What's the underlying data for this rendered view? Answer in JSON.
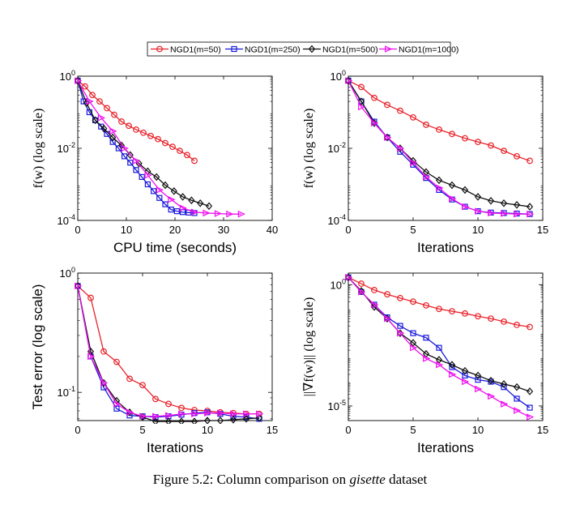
{
  "caption": {
    "prefix": "Figure 5.2: Column comparison on ",
    "dataset": "gisette",
    "suffix": " dataset"
  },
  "legend": {
    "placement": "top-center",
    "entries": [
      "NGD1(m=50)",
      "NGD1(m=250)",
      "NGD1(m=500)",
      "NGD1(m=1000)"
    ]
  },
  "series_style": [
    {
      "name": "NGD1(m=50)",
      "color": "#e8222a",
      "marker": "circle"
    },
    {
      "name": "NGD1(m=250)",
      "color": "#1a1adc",
      "marker": "square"
    },
    {
      "name": "NGD1(m=500)",
      "color": "#111111",
      "marker": "diamond"
    },
    {
      "name": "NGD1(m=1000)",
      "color": "#ee10ee",
      "marker": "triangle-right"
    }
  ],
  "chart_data": [
    {
      "type": "line",
      "title": "",
      "xlabel": "CPU time (seconds)",
      "ylabel": "f(w) (log scale)",
      "yscale": "log",
      "xlim": [
        0,
        40
      ],
      "ylim": [
        0.0001,
        1
      ],
      "xticks": [
        0,
        10,
        20,
        30,
        40
      ],
      "xtick_labels": [
        "0",
        "10",
        "20",
        "30",
        "40"
      ],
      "yticks": [
        1,
        0.01,
        0.0001
      ],
      "ytick_labels": [
        "10^0",
        "10^-2",
        "10^-4"
      ],
      "series": [
        {
          "name": "NGD1(m=50)",
          "x": [
            0,
            1.5,
            3,
            4.5,
            6,
            7.5,
            9,
            10.5,
            12,
            13.5,
            15,
            16.5,
            18,
            19.5,
            21,
            22.5,
            24
          ],
          "y": [
            0.75,
            0.52,
            0.3,
            0.2,
            0.13,
            0.085,
            0.055,
            0.042,
            0.033,
            0.027,
            0.022,
            0.018,
            0.014,
            0.011,
            0.0085,
            0.0065,
            0.0045
          ]
        },
        {
          "name": "NGD1(m=250)",
          "x": [
            0,
            1.2,
            2.4,
            3.6,
            4.8,
            6,
            7.2,
            8.4,
            9.6,
            10.8,
            12,
            13.2,
            14.4,
            15.6,
            16.8,
            18,
            19.2,
            20.4,
            21.6,
            22.8,
            24
          ],
          "y": [
            0.75,
            0.2,
            0.1,
            0.06,
            0.04,
            0.025,
            0.015,
            0.01,
            0.006,
            0.004,
            0.0025,
            0.0016,
            0.001,
            0.00065,
            0.00042,
            0.00028,
            0.0002,
            0.00018,
            0.00017,
            0.000165,
            0.00016
          ]
        },
        {
          "name": "NGD1(m=500)",
          "x": [
            0,
            1.8,
            3.6,
            5.4,
            7.2,
            9,
            10.8,
            12.6,
            14.4,
            16.2,
            18,
            19.8,
            21.6,
            23.4,
            25.2,
            27
          ],
          "y": [
            0.75,
            0.18,
            0.06,
            0.035,
            0.02,
            0.012,
            0.0065,
            0.0038,
            0.0023,
            0.0016,
            0.00095,
            0.00065,
            0.00045,
            0.00036,
            0.0003,
            0.00025
          ]
        },
        {
          "name": "NGD1(m=1000)",
          "x": [
            0,
            2.4,
            4.8,
            7.2,
            9.6,
            12,
            14.4,
            16.8,
            19.2,
            21.6,
            24,
            26.4,
            28.8,
            31.2,
            33.6
          ],
          "y": [
            0.75,
            0.2,
            0.07,
            0.03,
            0.01,
            0.0045,
            0.0018,
            0.0007,
            0.00038,
            0.00022,
            0.00017,
            0.00016,
            0.000155,
            0.00015,
            0.00015
          ]
        }
      ]
    },
    {
      "type": "line",
      "title": "",
      "xlabel": "Iterations",
      "ylabel": "f(w) (log scale)",
      "yscale": "log",
      "xlim": [
        0,
        15
      ],
      "ylim": [
        0.0001,
        1
      ],
      "xticks": [
        0,
        5,
        10,
        15
      ],
      "xtick_labels": [
        "0",
        "5",
        "10",
        "15"
      ],
      "yticks": [
        1,
        0.01,
        0.0001
      ],
      "ytick_labels": [
        "10^0",
        "10^-2",
        "10^-4"
      ],
      "series": [
        {
          "name": "NGD1(m=50)",
          "x": [
            0,
            1,
            2,
            3,
            4,
            5,
            6,
            7,
            8,
            9,
            10,
            11,
            12,
            13,
            14
          ],
          "y": [
            0.75,
            0.5,
            0.25,
            0.16,
            0.11,
            0.072,
            0.045,
            0.033,
            0.025,
            0.019,
            0.015,
            0.012,
            0.0085,
            0.006,
            0.0045
          ]
        },
        {
          "name": "NGD1(m=250)",
          "x": [
            0,
            1,
            2,
            3,
            4,
            5,
            6,
            7,
            8,
            9,
            10,
            11,
            12,
            13,
            14
          ],
          "y": [
            0.75,
            0.2,
            0.055,
            0.02,
            0.008,
            0.0035,
            0.0015,
            0.0007,
            0.00038,
            0.00024,
            0.00018,
            0.000165,
            0.00016,
            0.000155,
            0.00015
          ]
        },
        {
          "name": "NGD1(m=500)",
          "x": [
            0,
            1,
            2,
            3,
            4,
            5,
            6,
            7,
            8,
            9,
            10,
            11,
            12,
            13,
            14
          ],
          "y": [
            0.75,
            0.2,
            0.05,
            0.02,
            0.01,
            0.0045,
            0.0022,
            0.0013,
            0.00095,
            0.0007,
            0.00045,
            0.00035,
            0.0003,
            0.00027,
            0.00024
          ]
        },
        {
          "name": "NGD1(m=1000)",
          "x": [
            0,
            1,
            2,
            3,
            4,
            5,
            6,
            7,
            8,
            9,
            10,
            11,
            12,
            13,
            14
          ],
          "y": [
            0.75,
            0.14,
            0.05,
            0.02,
            0.01,
            0.004,
            0.0016,
            0.0008,
            0.0004,
            0.00024,
            0.00018,
            0.00016,
            0.000155,
            0.00015,
            0.00015
          ]
        }
      ]
    },
    {
      "type": "line",
      "title": "",
      "xlabel": "Iterations",
      "ylabel": "Test error (log scale)",
      "yscale": "log",
      "xlim": [
        0,
        15
      ],
      "ylim": [
        0.058,
        1
      ],
      "xticks": [
        0,
        5,
        10,
        15
      ],
      "xtick_labels": [
        "0",
        "5",
        "10",
        "15"
      ],
      "yticks": [
        1,
        0.1
      ],
      "ytick_labels": [
        "10^0",
        "10^-1"
      ],
      "series": [
        {
          "name": "NGD1(m=50)",
          "x": [
            0,
            1,
            2,
            3,
            4,
            5,
            6,
            7,
            8,
            9,
            10,
            11,
            12,
            13,
            14
          ],
          "y": [
            0.78,
            0.62,
            0.22,
            0.18,
            0.13,
            0.115,
            0.088,
            0.08,
            0.074,
            0.071,
            0.07,
            0.068,
            0.067,
            0.066,
            0.066
          ]
        },
        {
          "name": "NGD1(m=250)",
          "x": [
            0,
            1,
            2,
            3,
            4,
            5,
            6,
            7,
            8,
            9,
            10,
            11,
            12,
            13,
            14
          ],
          "y": [
            0.78,
            0.2,
            0.11,
            0.073,
            0.064,
            0.063,
            0.062,
            0.063,
            0.065,
            0.067,
            0.068,
            0.066,
            0.063,
            0.062,
            0.06
          ]
        },
        {
          "name": "NGD1(m=500)",
          "x": [
            0,
            1,
            2,
            3,
            4,
            5,
            6,
            7,
            8,
            9,
            10,
            11,
            12,
            13,
            14
          ],
          "y": [
            0.78,
            0.22,
            0.12,
            0.085,
            0.068,
            0.062,
            0.057,
            0.057,
            0.057,
            0.057,
            0.058,
            0.058,
            0.059,
            0.06,
            0.061
          ]
        },
        {
          "name": "NGD1(m=1000)",
          "x": [
            0,
            1,
            2,
            3,
            4,
            5,
            6,
            7,
            8,
            9,
            10,
            11,
            12,
            13,
            14
          ],
          "y": [
            0.78,
            0.2,
            0.12,
            0.08,
            0.068,
            0.063,
            0.063,
            0.064,
            0.066,
            0.066,
            0.067,
            0.067,
            0.066,
            0.066,
            0.066
          ]
        }
      ]
    },
    {
      "type": "line",
      "title": "",
      "xlabel": "Iterations",
      "ylabel": "||∇f(w)|| (log scale)",
      "yscale": "log",
      "xlim": [
        0,
        15
      ],
      "ylim": [
        2.5e-06,
        3
      ],
      "xticks": [
        0,
        5,
        10,
        15
      ],
      "xtick_labels": [
        "0",
        "5",
        "10",
        "15"
      ],
      "yticks": [
        1,
        1e-05
      ],
      "ytick_labels": [
        "10^0",
        "10^-5"
      ],
      "series": [
        {
          "name": "NGD1(m=50)",
          "x": [
            0,
            1,
            2,
            3,
            4,
            5,
            6,
            7,
            8,
            9,
            10,
            11,
            12,
            13,
            14
          ],
          "y": [
            2.0,
            1.1,
            0.6,
            0.4,
            0.28,
            0.2,
            0.14,
            0.1,
            0.08,
            0.065,
            0.05,
            0.04,
            0.03,
            0.022,
            0.018
          ]
        },
        {
          "name": "NGD1(m=250)",
          "x": [
            0,
            1,
            2,
            3,
            4,
            5,
            6,
            7,
            8,
            9,
            10,
            11,
            12,
            13,
            14
          ],
          "y": [
            2.0,
            0.5,
            0.15,
            0.045,
            0.02,
            0.01,
            0.0065,
            0.0025,
            0.0004,
            0.00018,
            0.00012,
            0.0001,
            6e-05,
            2e-05,
            8.5e-06
          ]
        },
        {
          "name": "NGD1(m=500)",
          "x": [
            0,
            1,
            2,
            3,
            4,
            5,
            6,
            7,
            8,
            9,
            10,
            11,
            12,
            13,
            14
          ],
          "y": [
            2.0,
            0.55,
            0.12,
            0.04,
            0.01,
            0.004,
            0.0014,
            0.0008,
            0.0005,
            0.00028,
            0.00018,
            0.00011,
            8e-05,
            6e-05,
            4e-05
          ]
        },
        {
          "name": "NGD1(m=1000)",
          "x": [
            0,
            1,
            2,
            3,
            4,
            5,
            6,
            7,
            8,
            9,
            10,
            11,
            12,
            13,
            14
          ],
          "y": [
            2.0,
            0.5,
            0.15,
            0.04,
            0.01,
            0.0025,
            0.0009,
            0.0005,
            0.0002,
            0.0001,
            5e-05,
            2.5e-05,
            1.2e-05,
            6.5e-06,
            3.5e-06
          ]
        }
      ]
    }
  ]
}
